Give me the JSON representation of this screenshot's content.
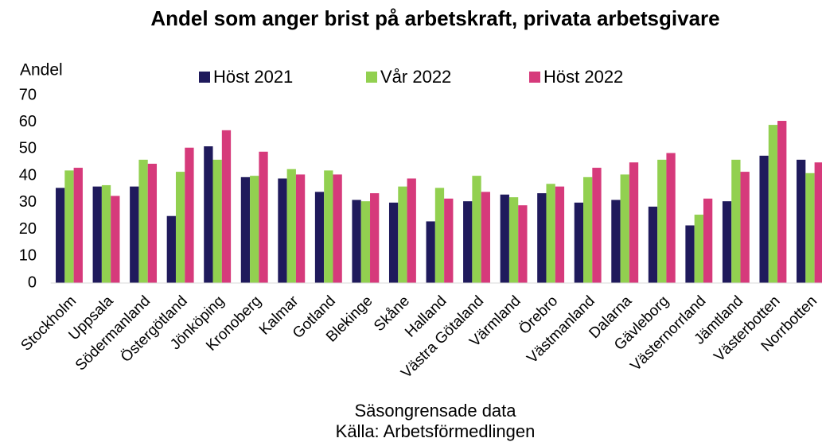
{
  "chart_data": {
    "type": "bar",
    "title": "Andel som anger brist på arbetskraft, privata arbetsgivare",
    "ylabel": "Andel",
    "xlabel": "Säsongrensade data",
    "source": "Källa: Arbetsförmedlingen",
    "categories": [
      "Stockholm",
      "Uppsala",
      "Södermanland",
      "Östergötland",
      "Jönköping",
      "Kronoberg",
      "Kalmar",
      "Gotland",
      "Blekinge",
      "Skåne",
      "Halland",
      "Västra Götaland",
      "Värmland",
      "Örebro",
      "Västmanland",
      "Dalarna",
      "Gävleborg",
      "Västernorrland",
      "Jämtland",
      "Västerbotten",
      "Norrbotten"
    ],
    "series": [
      {
        "name": "Höst 2021",
        "color": "#1f1a5c",
        "values": [
          35.5,
          36,
          36,
          25,
          51,
          39.5,
          39,
          34,
          31,
          30,
          23,
          30.5,
          33,
          33.5,
          30,
          31,
          28.5,
          21.5,
          30.5,
          47.5,
          46
        ]
      },
      {
        "name": "Vår 2022",
        "color": "#92d050",
        "values": [
          42,
          36.5,
          46,
          41.5,
          46,
          40,
          42.5,
          42,
          30.5,
          36,
          35.5,
          40,
          32,
          37,
          39.5,
          40.5,
          46,
          25.5,
          46,
          59,
          41
        ]
      },
      {
        "name": "Höst 2022",
        "color": "#d63a7b",
        "values": [
          43,
          32.5,
          44.5,
          50.5,
          57,
          49,
          40.5,
          40.5,
          33.5,
          39,
          31.5,
          34,
          29,
          36,
          43,
          45,
          48.5,
          31.5,
          41.5,
          60.5,
          45
        ]
      }
    ],
    "ylim": [
      0,
      70
    ],
    "yticks": [
      0,
      10,
      20,
      30,
      40,
      50,
      60,
      70
    ],
    "grid": false
  }
}
